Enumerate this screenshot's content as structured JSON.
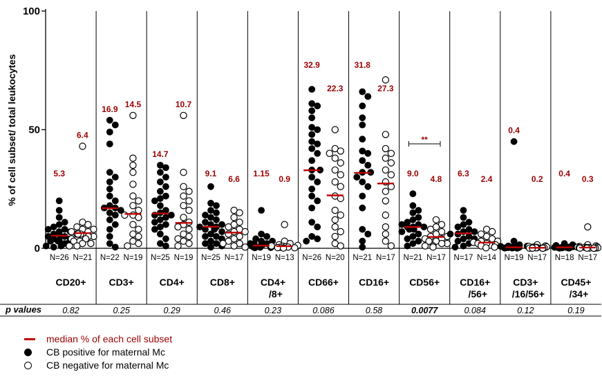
{
  "chart_data": {
    "type": "scatter",
    "ylabel": "% of cell subset/ total leukocytes",
    "yticks": [
      "0",
      "50",
      "100"
    ],
    "ylim": [
      0,
      100
    ],
    "p_label": "p values",
    "colors": {
      "median": "#c00000",
      "median_label": "#9b0000",
      "positive": "#000000",
      "negative_fill": "#ffffff",
      "negative_stroke": "#000000"
    },
    "groups": [
      {
        "label": "CD20+",
        "label2": "",
        "p": "0.82",
        "p_bold": false,
        "pos": {
          "n": "N=26",
          "median": 5.3,
          "median_label": "5.3",
          "values": [
            20,
            16,
            13,
            11,
            10,
            9,
            8,
            8,
            7,
            7,
            6,
            6,
            5,
            5,
            5,
            4,
            4,
            4,
            3,
            3,
            3,
            2,
            2,
            1,
            1,
            0.5
          ]
        },
        "neg": {
          "n": "N=21",
          "median": 6.4,
          "median_label": "6.4",
          "values": [
            43,
            11,
            10,
            9,
            8,
            8,
            7,
            7,
            6,
            6,
            6,
            5,
            5,
            4,
            4,
            3,
            3,
            2,
            2,
            1,
            1
          ]
        }
      },
      {
        "label": "CD3+",
        "label2": "",
        "p": "0.25",
        "p_bold": false,
        "pos": {
          "n": "N=22",
          "median": 16.9,
          "median_label": "16.9",
          "values": [
            54,
            52,
            49,
            44,
            32,
            30,
            28,
            25,
            22,
            20,
            18,
            17,
            17,
            16,
            15,
            14,
            12,
            10,
            8,
            5,
            2,
            0.5
          ]
        },
        "neg": {
          "n": "N=19",
          "median": 14.5,
          "median_label": "14.5",
          "values": [
            56,
            38,
            35,
            32,
            27,
            22,
            20,
            18,
            16,
            14,
            14,
            13,
            10,
            8,
            6,
            5,
            3,
            2,
            1
          ]
        }
      },
      {
        "label": "CD4+",
        "label2": "",
        "p": "0.29",
        "p_bold": false,
        "pos": {
          "n": "N=25",
          "median": 14.7,
          "median_label": "14.7",
          "values": [
            35,
            34,
            32,
            30,
            28,
            26,
            24,
            22,
            21,
            20,
            18,
            16,
            15,
            14,
            14,
            13,
            12,
            11,
            10,
            9,
            8,
            6,
            4,
            2,
            1
          ]
        },
        "neg": {
          "n": "N=19",
          "median": 10.7,
          "median_label": "10.7",
          "values": [
            56,
            32,
            26,
            24,
            22,
            20,
            18,
            16,
            13,
            11,
            10,
            9,
            8,
            6,
            5,
            4,
            3,
            2,
            1
          ]
        }
      },
      {
        "label": "CD8+",
        "label2": "",
        "p": "0.46",
        "p_bold": false,
        "pos": {
          "n": "N=25",
          "median": 9.1,
          "median_label": "9.1",
          "values": [
            26,
            19,
            18,
            16,
            15,
            14,
            13,
            12,
            11,
            10,
            10,
            9,
            9,
            8,
            8,
            7,
            6,
            5,
            5,
            4,
            3,
            2,
            2,
            1,
            0.5
          ]
        },
        "neg": {
          "n": "N=17",
          "median": 6.6,
          "median_label": "6.6",
          "values": [
            16,
            15,
            13,
            11,
            10,
            9,
            8,
            7,
            7,
            6,
            5,
            4,
            3,
            2,
            2,
            1,
            0.5
          ]
        }
      },
      {
        "label": "CD4+",
        "label2": "/8+",
        "p": "0.23",
        "p_bold": false,
        "pos": {
          "n": "N=19",
          "median": 1.15,
          "median_label": "1.15",
          "values": [
            16,
            6,
            5,
            4,
            3,
            3,
            2,
            2,
            2,
            1.5,
            1.2,
            1,
            1,
            0.8,
            0.6,
            0.5,
            0.4,
            0.3,
            0.2
          ]
        },
        "neg": {
          "n": "N=13",
          "median": 0.9,
          "median_label": "0.9",
          "values": [
            10,
            3,
            2,
            1.5,
            1.2,
            1,
            0.9,
            0.7,
            0.5,
            0.4,
            0.3,
            0.2,
            0.1
          ]
        }
      },
      {
        "label": "CD66+",
        "label2": "",
        "p": "0.086",
        "p_bold": false,
        "pos": {
          "n": "N=26",
          "median": 32.9,
          "median_label": "32.9",
          "values": [
            67,
            61,
            60,
            58,
            55,
            51,
            50,
            48,
            45,
            44,
            42,
            40,
            37,
            33,
            33,
            30,
            28,
            25,
            22,
            20,
            17,
            11,
            9,
            5,
            4,
            3
          ]
        },
        "neg": {
          "n": "N=20",
          "median": 22.3,
          "median_label": "22.3",
          "values": [
            50,
            42,
            41,
            40,
            38,
            36,
            33,
            31,
            28,
            26,
            22,
            21,
            16,
            14,
            12,
            9,
            7,
            5,
            2,
            1
          ]
        }
      },
      {
        "label": "CD16+",
        "label2": "",
        "p": "0.58",
        "p_bold": false,
        "pos": {
          "n": "N=21",
          "median": 31.8,
          "median_label": "31.8",
          "values": [
            66,
            64,
            60,
            55,
            52,
            46,
            41,
            40,
            37,
            35,
            32,
            32,
            30,
            28,
            26,
            22,
            17,
            8,
            6,
            3,
            0.5
          ]
        },
        "neg": {
          "n": "N=17",
          "median": 27.3,
          "median_label": "27.3",
          "values": [
            71,
            48,
            42,
            40,
            38,
            36,
            33,
            31,
            28,
            26,
            24,
            20,
            14,
            9,
            6,
            3,
            1
          ]
        }
      },
      {
        "label": "CD56+",
        "label2": "",
        "p": "0.0077",
        "p_bold": true,
        "significance": "**",
        "pos": {
          "n": "N=21",
          "median": 9.0,
          "median_label": "9.0",
          "values": [
            23,
            18,
            16,
            15,
            13,
            12,
            11,
            10,
            10,
            9,
            9,
            9,
            8,
            8,
            7,
            6,
            5,
            4,
            3,
            2,
            1
          ]
        },
        "neg": {
          "n": "N=17",
          "median": 4.8,
          "median_label": "4.8",
          "values": [
            12,
            10,
            9,
            8,
            7,
            6,
            5,
            5,
            4,
            4,
            3,
            3,
            2,
            2,
            1,
            1,
            0.5
          ]
        }
      },
      {
        "label": "CD16+",
        "label2": "/56+",
        "p": "0.084",
        "p_bold": false,
        "pos": {
          "n": "N=17",
          "median": 6.3,
          "median_label": "6.3",
          "values": [
            16,
            13,
            11,
            10,
            9,
            8,
            7,
            7,
            6,
            6,
            5,
            4,
            4,
            3,
            2,
            1,
            0.5
          ]
        },
        "neg": {
          "n": "N=14",
          "median": 2.4,
          "median_label": "2.4",
          "values": [
            8,
            7,
            6,
            5,
            4,
            3,
            3,
            2.5,
            2,
            2,
            1.5,
            1,
            0.5,
            0.2
          ]
        }
      },
      {
        "label": "CD3+",
        "label2": "/16/56+",
        "p": "0.12",
        "p_bold": false,
        "pos": {
          "n": "N=19",
          "median": 0.4,
          "median_label": "0.4",
          "values": [
            45,
            3,
            1.5,
            1,
            0.9,
            0.8,
            0.7,
            0.6,
            0.5,
            0.4,
            0.4,
            0.3,
            0.3,
            0.2,
            0.2,
            0.1,
            0.1,
            0.1,
            0.05
          ]
        },
        "neg": {
          "n": "N=17",
          "median": 0.2,
          "median_label": "0.2",
          "values": [
            1.5,
            1,
            0.8,
            0.6,
            0.5,
            0.4,
            0.3,
            0.3,
            0.2,
            0.2,
            0.2,
            0.1,
            0.1,
            0.1,
            0.05,
            0.05,
            0.02
          ]
        }
      },
      {
        "label": "CD45+",
        "label2": "/34+",
        "p": "0.19",
        "p_bold": false,
        "pos": {
          "n": "N=18",
          "median": 0.4,
          "median_label": "0.4",
          "values": [
            2,
            1.5,
            1.2,
            1,
            0.8,
            0.7,
            0.6,
            0.5,
            0.5,
            0.4,
            0.4,
            0.3,
            0.3,
            0.2,
            0.2,
            0.1,
            0.1,
            0.05
          ]
        },
        "neg": {
          "n": "N=17",
          "median": 0.3,
          "median_label": "0.3",
          "values": [
            9,
            1.5,
            1,
            0.8,
            0.6,
            0.5,
            0.4,
            0.3,
            0.3,
            0.3,
            0.2,
            0.2,
            0.1,
            0.1,
            0.05,
            0.05,
            0.02
          ]
        }
      }
    ]
  },
  "legend": {
    "median": "median % of each cell subset",
    "positive": "CB positive for maternal Mc",
    "negative": "CB negative for maternal Mc"
  }
}
